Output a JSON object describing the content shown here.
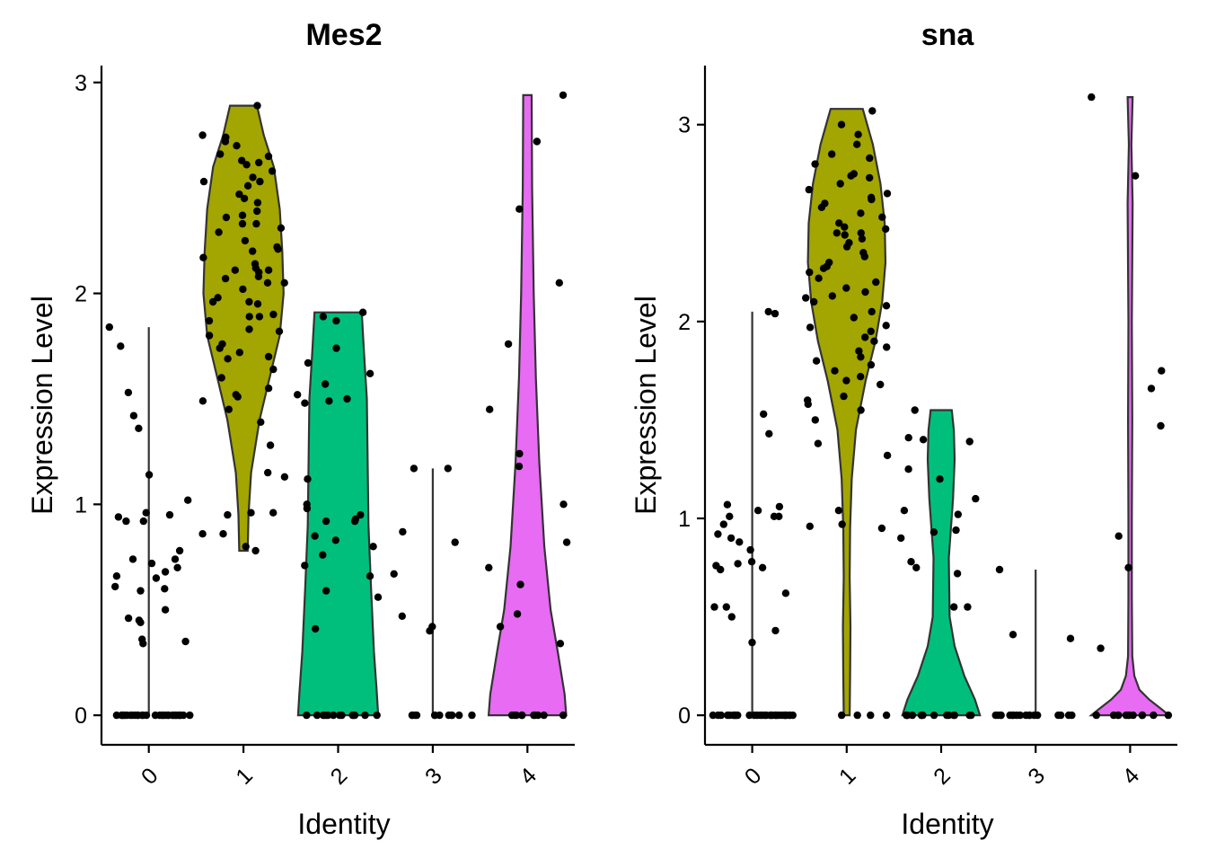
{
  "chart_data": [
    {
      "type": "violin",
      "title": "Mes2",
      "xlabel": "Identity",
      "ylabel": "Expression Level",
      "categories": [
        "0",
        "1",
        "2",
        "3",
        "4"
      ],
      "yticks": [
        "0",
        "1",
        "2",
        "3"
      ],
      "ylim": [
        -0.14,
        3.08
      ],
      "colors": [
        "#F8766D",
        "#A3A500",
        "#00BF7D",
        "#00B0F6",
        "#E76BF3"
      ],
      "violins": [
        {
          "category": "0",
          "max": 1.84,
          "width": [
            [
              0,
              0.01
            ],
            [
              1.84,
              0.01
            ]
          ]
        },
        {
          "category": "1",
          "min": 0.78,
          "max": 2.89,
          "width": [
            [
              0.78,
              0.1
            ],
            [
              0.95,
              0.12
            ],
            [
              1.15,
              0.18
            ],
            [
              1.4,
              0.38
            ],
            [
              1.6,
              0.62
            ],
            [
              1.8,
              0.86
            ],
            [
              2.0,
              0.95
            ],
            [
              2.2,
              0.92
            ],
            [
              2.4,
              0.86
            ],
            [
              2.6,
              0.72
            ],
            [
              2.75,
              0.48
            ],
            [
              2.89,
              0.32
            ]
          ]
        },
        {
          "category": "2",
          "min": 0.0,
          "max": 1.91,
          "width": [
            [
              0.0,
              0.95
            ],
            [
              0.1,
              0.92
            ],
            [
              0.3,
              0.85
            ],
            [
              0.6,
              0.78
            ],
            [
              0.9,
              0.72
            ],
            [
              1.2,
              0.7
            ],
            [
              1.5,
              0.68
            ],
            [
              1.7,
              0.62
            ],
            [
              1.91,
              0.56
            ]
          ]
        },
        {
          "category": "3",
          "max": 1.17,
          "width": [
            [
              0,
              0.01
            ],
            [
              1.17,
              0.01
            ]
          ]
        },
        {
          "category": "4",
          "min": 0.0,
          "max": 2.94,
          "width": [
            [
              0.0,
              0.92
            ],
            [
              0.1,
              0.88
            ],
            [
              0.3,
              0.72
            ],
            [
              0.5,
              0.55
            ],
            [
              0.8,
              0.4
            ],
            [
              1.2,
              0.28
            ],
            [
              1.6,
              0.2
            ],
            [
              2.0,
              0.15
            ],
            [
              2.5,
              0.11
            ],
            [
              2.94,
              0.1
            ]
          ]
        }
      ],
      "points": [
        {
          "category": "0",
          "values": [
            0,
            0,
            0,
            0,
            0,
            0,
            0,
            0,
            0,
            0,
            0,
            0,
            0,
            0,
            0,
            0,
            0,
            0,
            0,
            0,
            0,
            0,
            0,
            0,
            0,
            0,
            0,
            0,
            0,
            0,
            0,
            0,
            1.75,
            1.42,
            1.36,
            1.14,
            1.02,
            0.96,
            0.95,
            0.92,
            0.92,
            0.78,
            0.74,
            0.74,
            0.72,
            0.7,
            0.68,
            0.66,
            0.65,
            0.61,
            0.6,
            0.59,
            0.5,
            0.46,
            0.45,
            0.44,
            0.36,
            0.35,
            0.34,
            1.84,
            1.53,
            0.94
          ]
        },
        {
          "category": "1",
          "values": [
            2.89,
            2.75,
            2.74,
            2.72,
            2.7,
            2.66,
            2.65,
            2.63,
            2.61,
            2.58,
            2.55,
            2.53,
            2.53,
            2.51,
            2.47,
            2.45,
            2.39,
            2.36,
            2.33,
            2.31,
            2.29,
            2.25,
            2.22,
            2.2,
            2.17,
            2.14,
            2.12,
            2.11,
            2.11,
            2.1,
            2.07,
            2.05,
            2.05,
            2.02,
            1.98,
            1.96,
            1.95,
            1.9,
            1.89,
            1.89,
            1.87,
            1.82,
            1.8,
            1.76,
            1.72,
            1.7,
            1.69,
            1.64,
            1.6,
            1.55,
            1.52,
            1.51,
            1.49,
            1.45,
            1.39,
            1.28,
            1.15,
            1.13,
            0.96,
            0.96,
            0.95,
            0.86,
            0.86,
            0.8,
            0.78,
            2.62,
            2.43,
            2.37,
            2.33,
            2.21,
            2.08,
            1.96,
            1.83,
            1.74
          ]
        },
        {
          "category": "2",
          "values": [
            0,
            0,
            0,
            0,
            0,
            0,
            0,
            0,
            0,
            0,
            0,
            0,
            0,
            0,
            1.91,
            1.89,
            1.87,
            1.74,
            1.67,
            1.62,
            1.57,
            1.52,
            1.5,
            1.49,
            1.48,
            1.12,
            1.0,
            0.98,
            0.95,
            0.93,
            0.92,
            0.92,
            0.85,
            0.83,
            0.8,
            0.76,
            0.71,
            0.66,
            0.59,
            0.56,
            0.41
          ]
        },
        {
          "category": "3",
          "values": [
            0,
            0,
            0,
            0,
            0,
            0,
            0,
            0,
            0,
            0,
            0,
            0,
            1.17,
            1.17,
            0.87,
            0.82,
            0.67,
            0.47,
            0.42,
            0.4
          ]
        },
        {
          "category": "4",
          "values": [
            0,
            0,
            0,
            0,
            0,
            0,
            0,
            0,
            0,
            0,
            2.94,
            2.72,
            2.4,
            2.05,
            1.76,
            1.45,
            1.24,
            1.18,
            1.0,
            0.82,
            0.7,
            0.62,
            0.48,
            0.42,
            0.34
          ]
        }
      ]
    },
    {
      "type": "violin",
      "title": "sna",
      "xlabel": "Identity",
      "ylabel": "Expression Level",
      "categories": [
        "0",
        "1",
        "2",
        "3",
        "4"
      ],
      "yticks": [
        "0",
        "1",
        "2",
        "3"
      ],
      "ylim": [
        -0.15,
        3.3
      ],
      "colors": [
        "#F8766D",
        "#A3A500",
        "#00BF7D",
        "#00B0F6",
        "#E76BF3"
      ],
      "violins": [
        {
          "category": "0",
          "max": 2.05,
          "width": [
            [
              0,
              0.01
            ],
            [
              2.05,
              0.01
            ]
          ]
        },
        {
          "category": "1",
          "min": 0.0,
          "max": 3.08,
          "width": [
            [
              0.0,
              0.07
            ],
            [
              0.2,
              0.08
            ],
            [
              0.45,
              0.09
            ],
            [
              0.7,
              0.07
            ],
            [
              0.95,
              0.08
            ],
            [
              1.2,
              0.12
            ],
            [
              1.45,
              0.22
            ],
            [
              1.7,
              0.45
            ],
            [
              1.9,
              0.68
            ],
            [
              2.1,
              0.84
            ],
            [
              2.3,
              0.92
            ],
            [
              2.5,
              0.9
            ],
            [
              2.7,
              0.8
            ],
            [
              2.9,
              0.62
            ],
            [
              3.08,
              0.38
            ]
          ]
        },
        {
          "category": "2",
          "min": 0.0,
          "max": 1.55,
          "width": [
            [
              0.0,
              0.92
            ],
            [
              0.08,
              0.8
            ],
            [
              0.2,
              0.55
            ],
            [
              0.35,
              0.32
            ],
            [
              0.5,
              0.2
            ],
            [
              0.8,
              0.18
            ],
            [
              1.1,
              0.28
            ],
            [
              1.3,
              0.32
            ],
            [
              1.45,
              0.3
            ],
            [
              1.55,
              0.25
            ]
          ]
        },
        {
          "category": "3",
          "max": 0.74,
          "width": [
            [
              0,
              0.01
            ],
            [
              0.74,
              0.01
            ]
          ]
        },
        {
          "category": "4",
          "min": 0.0,
          "max": 3.14,
          "width": [
            [
              0.0,
              0.92
            ],
            [
              0.03,
              0.75
            ],
            [
              0.08,
              0.45
            ],
            [
              0.13,
              0.22
            ],
            [
              0.2,
              0.1
            ],
            [
              0.3,
              0.05
            ],
            [
              0.6,
              0.04
            ],
            [
              1.0,
              0.04
            ],
            [
              1.5,
              0.05
            ],
            [
              2.0,
              0.04
            ],
            [
              2.6,
              0.06
            ],
            [
              2.9,
              0.03
            ],
            [
              3.14,
              0.06
            ]
          ]
        }
      ],
      "points": [
        {
          "category": "0",
          "values": [
            0,
            0,
            0,
            0,
            0,
            0,
            0,
            0,
            0,
            0,
            0,
            0,
            0,
            0,
            0,
            0,
            0,
            0,
            0,
            0,
            0,
            0,
            0,
            0,
            0,
            0,
            0,
            0,
            0,
            0,
            0,
            0,
            2.04,
            2.05,
            1.43,
            1.07,
            1.06,
            1.01,
            1.01,
            1.01,
            0.97,
            0.92,
            0.9,
            0.88,
            0.84,
            0.78,
            0.76,
            0.77,
            0.75,
            0.62,
            0.55,
            0.55,
            0.5,
            0.43,
            0.37,
            1.53,
            1.04,
            0.74
          ]
        },
        {
          "category": "1",
          "values": [
            3.07,
            3.0,
            2.95,
            2.9,
            2.85,
            2.8,
            2.75,
            2.74,
            2.73,
            2.7,
            2.67,
            2.65,
            2.63,
            2.62,
            2.6,
            2.58,
            2.55,
            2.53,
            2.5,
            2.48,
            2.47,
            2.45,
            2.44,
            2.42,
            2.4,
            2.38,
            2.35,
            2.33,
            2.3,
            2.28,
            2.25,
            2.22,
            2.2,
            2.17,
            2.13,
            2.12,
            2.1,
            2.08,
            2.05,
            2.02,
            1.98,
            1.95,
            1.92,
            1.9,
            1.87,
            1.85,
            1.82,
            1.8,
            1.78,
            1.75,
            1.72,
            1.7,
            1.68,
            1.62,
            1.58,
            1.55,
            1.5,
            1.38,
            1.32,
            1.04,
            0.97,
            0.96,
            0.95,
            0,
            0,
            0,
            0,
            2.83,
            2.45,
            2.27,
            2.15,
            1.97,
            1.6
          ]
        },
        {
          "category": "2",
          "values": [
            0,
            0,
            0,
            0,
            0,
            0,
            0,
            0,
            0,
            0,
            0,
            0,
            0,
            0,
            1.55,
            1.41,
            1.4,
            1.39,
            1.25,
            1.2,
            1.1,
            1.04,
            1.02,
            0.94,
            0.93,
            0.9,
            0.78,
            0.75,
            0.72,
            0.55,
            0.55
          ]
        },
        {
          "category": "3",
          "values": [
            0,
            0,
            0,
            0,
            0,
            0,
            0,
            0,
            0,
            0,
            0,
            0,
            0,
            0,
            0,
            0,
            0,
            0,
            0.74,
            0.41,
            0.39
          ]
        },
        {
          "category": "4",
          "values": [
            0,
            0,
            0,
            0,
            0,
            0,
            0,
            0,
            0,
            0,
            0,
            0,
            3.14,
            2.74,
            1.75,
            1.66,
            1.47,
            0.91,
            0.75,
            0.34
          ]
        }
      ]
    }
  ]
}
